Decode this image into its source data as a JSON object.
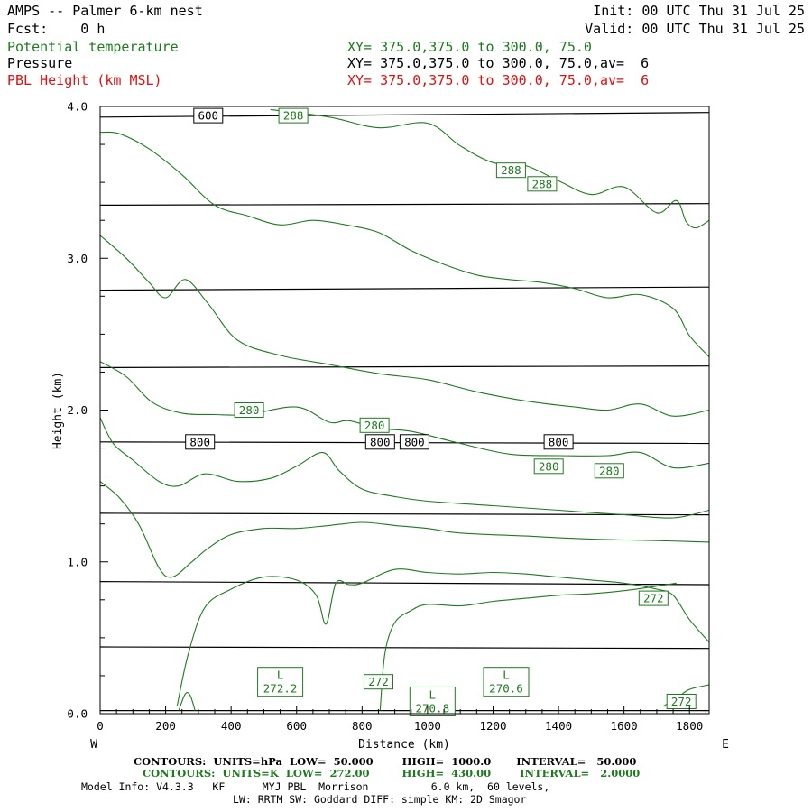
{
  "header": {
    "title": "AMPS -- Palmer 6-km nest",
    "init": "Init: 00 UTC Thu 31 Jul 25",
    "fcst": "Fcst:    0 h",
    "valid": "Valid: 00 UTC Thu 31 Jul 25"
  },
  "legend": [
    {
      "name": "Potential temperature",
      "xy": "XY= 375.0,375.0 to 300.0, 75.0",
      "color": "#1e7a1e"
    },
    {
      "name": "Pressure",
      "xy": "XY= 375.0,375.0 to 300.0, 75.0,av=  6",
      "color": "#000000"
    },
    {
      "name": "PBL Height (km MSL)",
      "xy": "XY= 375.0,375.0 to 300.0, 75.0,av=  6",
      "color": "#e01010"
    }
  ],
  "footer": {
    "line1": "CONTOURS:  UNITS=hPa  LOW=  50.000        HIGH=  1000.0       INTERVAL=   50.000",
    "line2": "CONTOURS:  UNITS=K  LOW=  272.00         HIGH=  430.00        INTERVAL=   2.0000",
    "line3": "Model Info: V4.3.3   KF      MYJ PBL  Morrison          6.0 km,  60 levels,",
    "line4": "LW: RRTM SW: Goddard DIFF: simple KM: 2D Smagor"
  },
  "chart_data": {
    "type": "line",
    "xlabel": "Distance (km)",
    "ylabel": "Height (km)",
    "xlim": [
      0,
      1860
    ],
    "ylim": [
      0,
      4.0
    ],
    "x_ticks": [
      0,
      200,
      400,
      600,
      800,
      1000,
      1200,
      1400,
      1600,
      1800
    ],
    "y_ticks": [
      0.0,
      1.0,
      2.0,
      3.0,
      4.0
    ],
    "x_tick_labels": [
      "0",
      "200",
      "400",
      "600",
      "800",
      "1000",
      "1200",
      "1400",
      "1600",
      "1800"
    ],
    "y_tick_labels": [
      "0.0",
      "1.0",
      "2.0",
      "3.0",
      "4.0"
    ],
    "left_end_label": "W",
    "right_end_label": "E",
    "pressure_color": "#000000",
    "theta_color": "#1e7a1e",
    "pressure_contours": [
      {
        "x": [
          0,
          1860
        ],
        "y": [
          3.93,
          3.96
        ]
      },
      {
        "x": [
          0,
          1860
        ],
        "y": [
          3.35,
          3.36
        ]
      },
      {
        "x": [
          0,
          1860
        ],
        "y": [
          2.79,
          2.81
        ]
      },
      {
        "x": [
          0,
          1860
        ],
        "y": [
          2.28,
          2.29
        ]
      },
      {
        "x": [
          0,
          1860
        ],
        "y": [
          1.79,
          1.78
        ]
      },
      {
        "x": [
          0,
          1860
        ],
        "y": [
          1.32,
          1.31
        ]
      },
      {
        "x": [
          0,
          1860
        ],
        "y": [
          0.87,
          0.85
        ]
      },
      {
        "x": [
          0,
          1860
        ],
        "y": [
          0.44,
          0.43
        ]
      },
      {
        "x": [
          0,
          1860
        ],
        "y": [
          0.02,
          0.02
        ]
      }
    ],
    "pressure_labels": [
      {
        "text": "600",
        "x": 330,
        "y": 3.94
      },
      {
        "text": "800",
        "x": 305,
        "y": 1.79
      },
      {
        "text": "800",
        "x": 855,
        "y": 1.79
      },
      {
        "text": "800",
        "x": 960,
        "y": 1.79
      },
      {
        "text": "800",
        "x": 1400,
        "y": 1.79
      }
    ],
    "theta_contours": [
      {
        "x": [
          520,
          700,
          850,
          1000,
          1100,
          1200,
          1300,
          1400,
          1500,
          1600,
          1700,
          1760,
          1790,
          1820,
          1860
        ],
        "y": [
          3.98,
          3.93,
          3.86,
          3.89,
          3.74,
          3.63,
          3.61,
          3.51,
          3.42,
          3.47,
          3.3,
          3.38,
          3.24,
          3.2,
          3.25
        ]
      },
      {
        "x": [
          0,
          60,
          150,
          250,
          350,
          450,
          550,
          650,
          750,
          850,
          950,
          1050,
          1150,
          1250,
          1350,
          1450,
          1550,
          1650,
          1750,
          1800,
          1860
        ],
        "y": [
          3.83,
          3.82,
          3.72,
          3.55,
          3.35,
          3.28,
          3.22,
          3.25,
          3.22,
          3.17,
          3.05,
          2.96,
          2.89,
          2.86,
          2.84,
          2.8,
          2.74,
          2.76,
          2.67,
          2.49,
          2.35
        ]
      },
      {
        "x": [
          0,
          80,
          150,
          200,
          260,
          330,
          420,
          550,
          700,
          850,
          1000,
          1150,
          1300,
          1450,
          1550,
          1650,
          1750,
          1860
        ],
        "y": [
          3.15,
          3.0,
          2.84,
          2.74,
          2.86,
          2.7,
          2.46,
          2.36,
          2.3,
          2.24,
          2.2,
          2.12,
          2.06,
          2.02,
          2.0,
          2.04,
          1.96,
          2.0
        ]
      },
      {
        "x": [
          0,
          80,
          160,
          250,
          350,
          450,
          600,
          700,
          760,
          850,
          950,
          1100,
          1250,
          1400,
          1550,
          1650,
          1750,
          1860
        ],
        "y": [
          2.32,
          2.22,
          2.05,
          1.98,
          1.97,
          1.97,
          2.02,
          1.92,
          1.93,
          1.88,
          1.86,
          1.78,
          1.71,
          1.7,
          1.7,
          1.72,
          1.62,
          1.65
        ]
      },
      {
        "x": [
          0,
          40,
          100,
          180,
          240,
          320,
          420,
          520,
          600,
          680,
          730,
          800,
          900,
          1000,
          1200,
          1400,
          1600,
          1750,
          1860
        ],
        "y": [
          1.95,
          1.78,
          1.67,
          1.53,
          1.5,
          1.58,
          1.53,
          1.55,
          1.63,
          1.72,
          1.6,
          1.48,
          1.43,
          1.4,
          1.37,
          1.34,
          1.31,
          1.29,
          1.34
        ]
      },
      {
        "x": [
          0,
          60,
          120,
          180,
          220,
          280,
          330,
          400,
          500,
          600,
          700,
          800,
          900,
          1000,
          1100,
          1300,
          1500,
          1700,
          1860
        ],
        "y": [
          1.53,
          1.42,
          1.24,
          0.96,
          0.9,
          1.0,
          1.09,
          1.18,
          1.22,
          1.22,
          1.24,
          1.26,
          1.24,
          1.22,
          1.19,
          1.17,
          1.15,
          1.14,
          1.13
        ]
      },
      {
        "x": [
          235,
          270,
          320,
          400,
          500,
          600,
          660,
          690,
          720,
          760,
          800,
          900,
          1000,
          1100,
          1200,
          1300,
          1400,
          1500,
          1600,
          1700,
          1750,
          1800,
          1860
        ],
        "y": [
          0.05,
          0.4,
          0.7,
          0.82,
          0.9,
          0.88,
          0.78,
          0.59,
          0.86,
          0.85,
          0.86,
          0.95,
          0.93,
          0.92,
          0.93,
          0.92,
          0.9,
          0.88,
          0.86,
          0.82,
          0.78,
          0.62,
          0.47
        ]
      },
      {
        "x": [
          240,
          260,
          275,
          290
        ],
        "y": [
          0.02,
          0.13,
          0.12,
          0.02
        ]
      },
      {
        "x": [
          855,
          870,
          900,
          950,
          1000,
          1100,
          1200,
          1300,
          1400,
          1500,
          1600,
          1700,
          1760
        ],
        "y": [
          0.02,
          0.4,
          0.6,
          0.68,
          0.72,
          0.71,
          0.74,
          0.76,
          0.78,
          0.79,
          0.81,
          0.84,
          0.86
        ]
      },
      {
        "x": [
          1720,
          1760,
          1800,
          1860
        ],
        "y": [
          0.05,
          0.1,
          0.16,
          0.19
        ]
      }
    ],
    "theta_labels": [
      {
        "text": "288",
        "x": 590,
        "y": 3.94
      },
      {
        "text": "288",
        "x": 1255,
        "y": 3.58
      },
      {
        "text": "288",
        "x": 1350,
        "y": 3.49
      },
      {
        "text": "280",
        "x": 455,
        "y": 2.0
      },
      {
        "text": "280",
        "x": 838,
        "y": 1.9
      },
      {
        "text": "280",
        "x": 1370,
        "y": 1.63
      },
      {
        "text": "280",
        "x": 1555,
        "y": 1.6
      },
      {
        "text": "272",
        "x": 1690,
        "y": 0.76
      },
      {
        "text": "272",
        "x": 850,
        "y": 0.21
      },
      {
        "text": "272",
        "x": 1775,
        "y": 0.08
      }
    ],
    "low_labels": [
      {
        "text": "L",
        "value": "272.2",
        "x": 550,
        "y": 0.21
      },
      {
        "text": "L",
        "value": "270.6",
        "x": 1240,
        "y": 0.21
      },
      {
        "text": "L",
        "value": "270.8",
        "x": 1015,
        "y": 0.08
      }
    ]
  }
}
